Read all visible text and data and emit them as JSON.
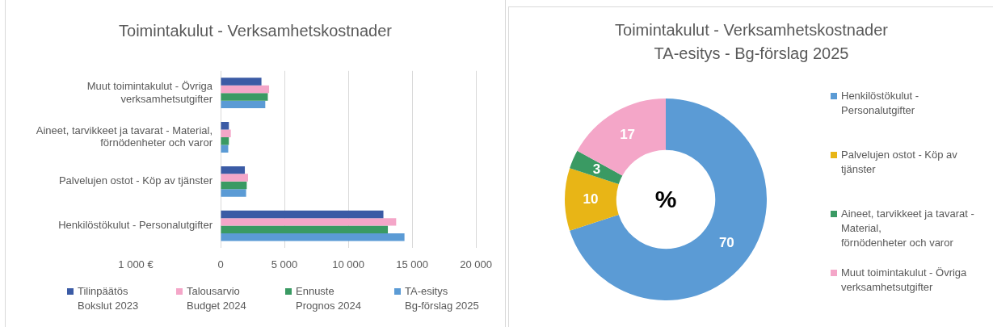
{
  "chart_data": [
    {
      "type": "bar",
      "orientation": "horizontal",
      "title": "Toimintakulut - Verksamhetskostnader",
      "xlabel": "1 000 €",
      "categories": [
        "Muut toimintakulut - Övriga verksamhetsutgifter",
        "Aineet, tarvikkeet ja tavarat - Material,\nförnödenheter och varor",
        "Palvelujen ostot - Köp av tjänster",
        "Henkilöstökulut - Personalutgifter"
      ],
      "series": [
        {
          "name": "Tilinpäätös\nBokslut 2023",
          "color": "#3b5ba5",
          "values": [
            3200,
            650,
            1900,
            12750
          ]
        },
        {
          "name": "Talousarvio\nBudget 2024",
          "color": "#f4a6c8",
          "values": [
            3800,
            800,
            2150,
            13750
          ]
        },
        {
          "name": "Ennuste\nPrognos 2024",
          "color": "#3a9a63",
          "values": [
            3700,
            650,
            2050,
            13100
          ]
        },
        {
          "name": "TA-esitys\nBg-förslag 2025",
          "color": "#5b9bd5",
          "values": [
            3500,
            600,
            2000,
            14400
          ]
        }
      ],
      "xlim": [
        0,
        20000
      ],
      "xticks": [
        0,
        {
          "value": 5000,
          "label": "5 000"
        },
        {
          "value": 10000,
          "label": "10 000"
        },
        {
          "value": 15000,
          "label": "15 000"
        },
        {
          "value": 20000,
          "label": "20 000"
        }
      ],
      "grid": "x",
      "legend": "bottom"
    },
    {
      "type": "donut",
      "title": "Toimintakulut - Verksamhetskostnader",
      "subtitle": "TA-esitys - Bg-förslag 2025",
      "categories": [
        "Henkilöstökulut - Personalutgifter",
        "Palvelujen ostot - Köp av tjänster",
        "Aineet, tarvikkeet ja tavarat - Material,\nförnödenheter och varor",
        "Muut toimintakulut - Övriga verksamhetsutgifter"
      ],
      "values": [
        70,
        10,
        3,
        17
      ],
      "colors": [
        "#5b9bd5",
        "#e8b516",
        "#3a9a63",
        "#f4a6c8"
      ],
      "data_labels": true,
      "legend": "right",
      "annotations": [
        "%"
      ]
    }
  ]
}
